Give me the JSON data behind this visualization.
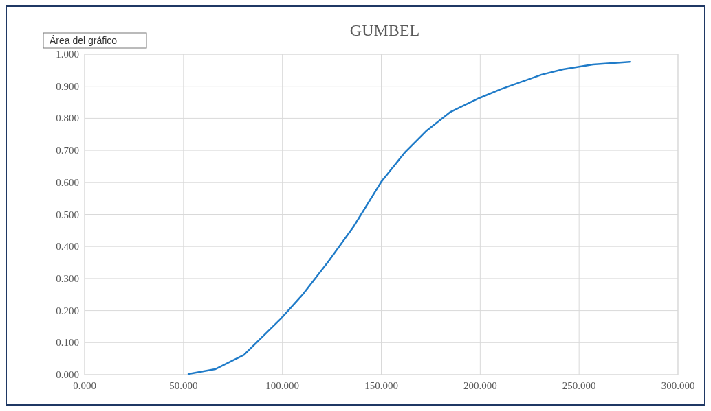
{
  "chart_data": {
    "type": "line",
    "title": "GUMBEL",
    "annotations": [
      "Área del gráfico"
    ],
    "x": [
      52.5,
      66,
      80.6,
      99,
      110,
      123,
      136,
      150,
      162,
      173,
      185,
      199.5,
      210.5,
      231,
      242,
      257,
      275.6
    ],
    "series": [
      {
        "color": "#1f7bc8",
        "values": [
          0.002,
          0.017,
          0.062,
          0.173,
          0.248,
          0.351,
          0.462,
          0.602,
          0.694,
          0.762,
          0.82,
          0.863,
          0.891,
          0.936,
          0.953,
          0.968,
          0.976
        ]
      }
    ],
    "xlim": [
      0,
      300
    ],
    "xticks": [
      {
        "value": 0,
        "label": "0.000"
      },
      {
        "value": 50,
        "label": "50.000"
      },
      {
        "value": 100,
        "label": "100.000"
      },
      {
        "value": 150,
        "label": "150.000"
      },
      {
        "value": 200,
        "label": "200.000"
      },
      {
        "value": 250,
        "label": "250.000"
      },
      {
        "value": 300,
        "label": "300.000"
      }
    ],
    "ylim": [
      0,
      1
    ],
    "yticks": [
      {
        "value": 0,
        "label": "0.000"
      },
      {
        "value": 0.1,
        "label": "0.100"
      },
      {
        "value": 0.2,
        "label": "0.200"
      },
      {
        "value": 0.3,
        "label": "0.300"
      },
      {
        "value": 0.4,
        "label": "0.400"
      },
      {
        "value": 0.5,
        "label": "0.500"
      },
      {
        "value": 0.6,
        "label": "0.600"
      },
      {
        "value": 0.7,
        "label": "0.700"
      },
      {
        "value": 0.8,
        "label": "0.800"
      },
      {
        "value": 0.9,
        "label": "0.900"
      },
      {
        "value": 1,
        "label": "1.000"
      }
    ],
    "grid": true,
    "marker": "none",
    "line_style": "solid"
  }
}
